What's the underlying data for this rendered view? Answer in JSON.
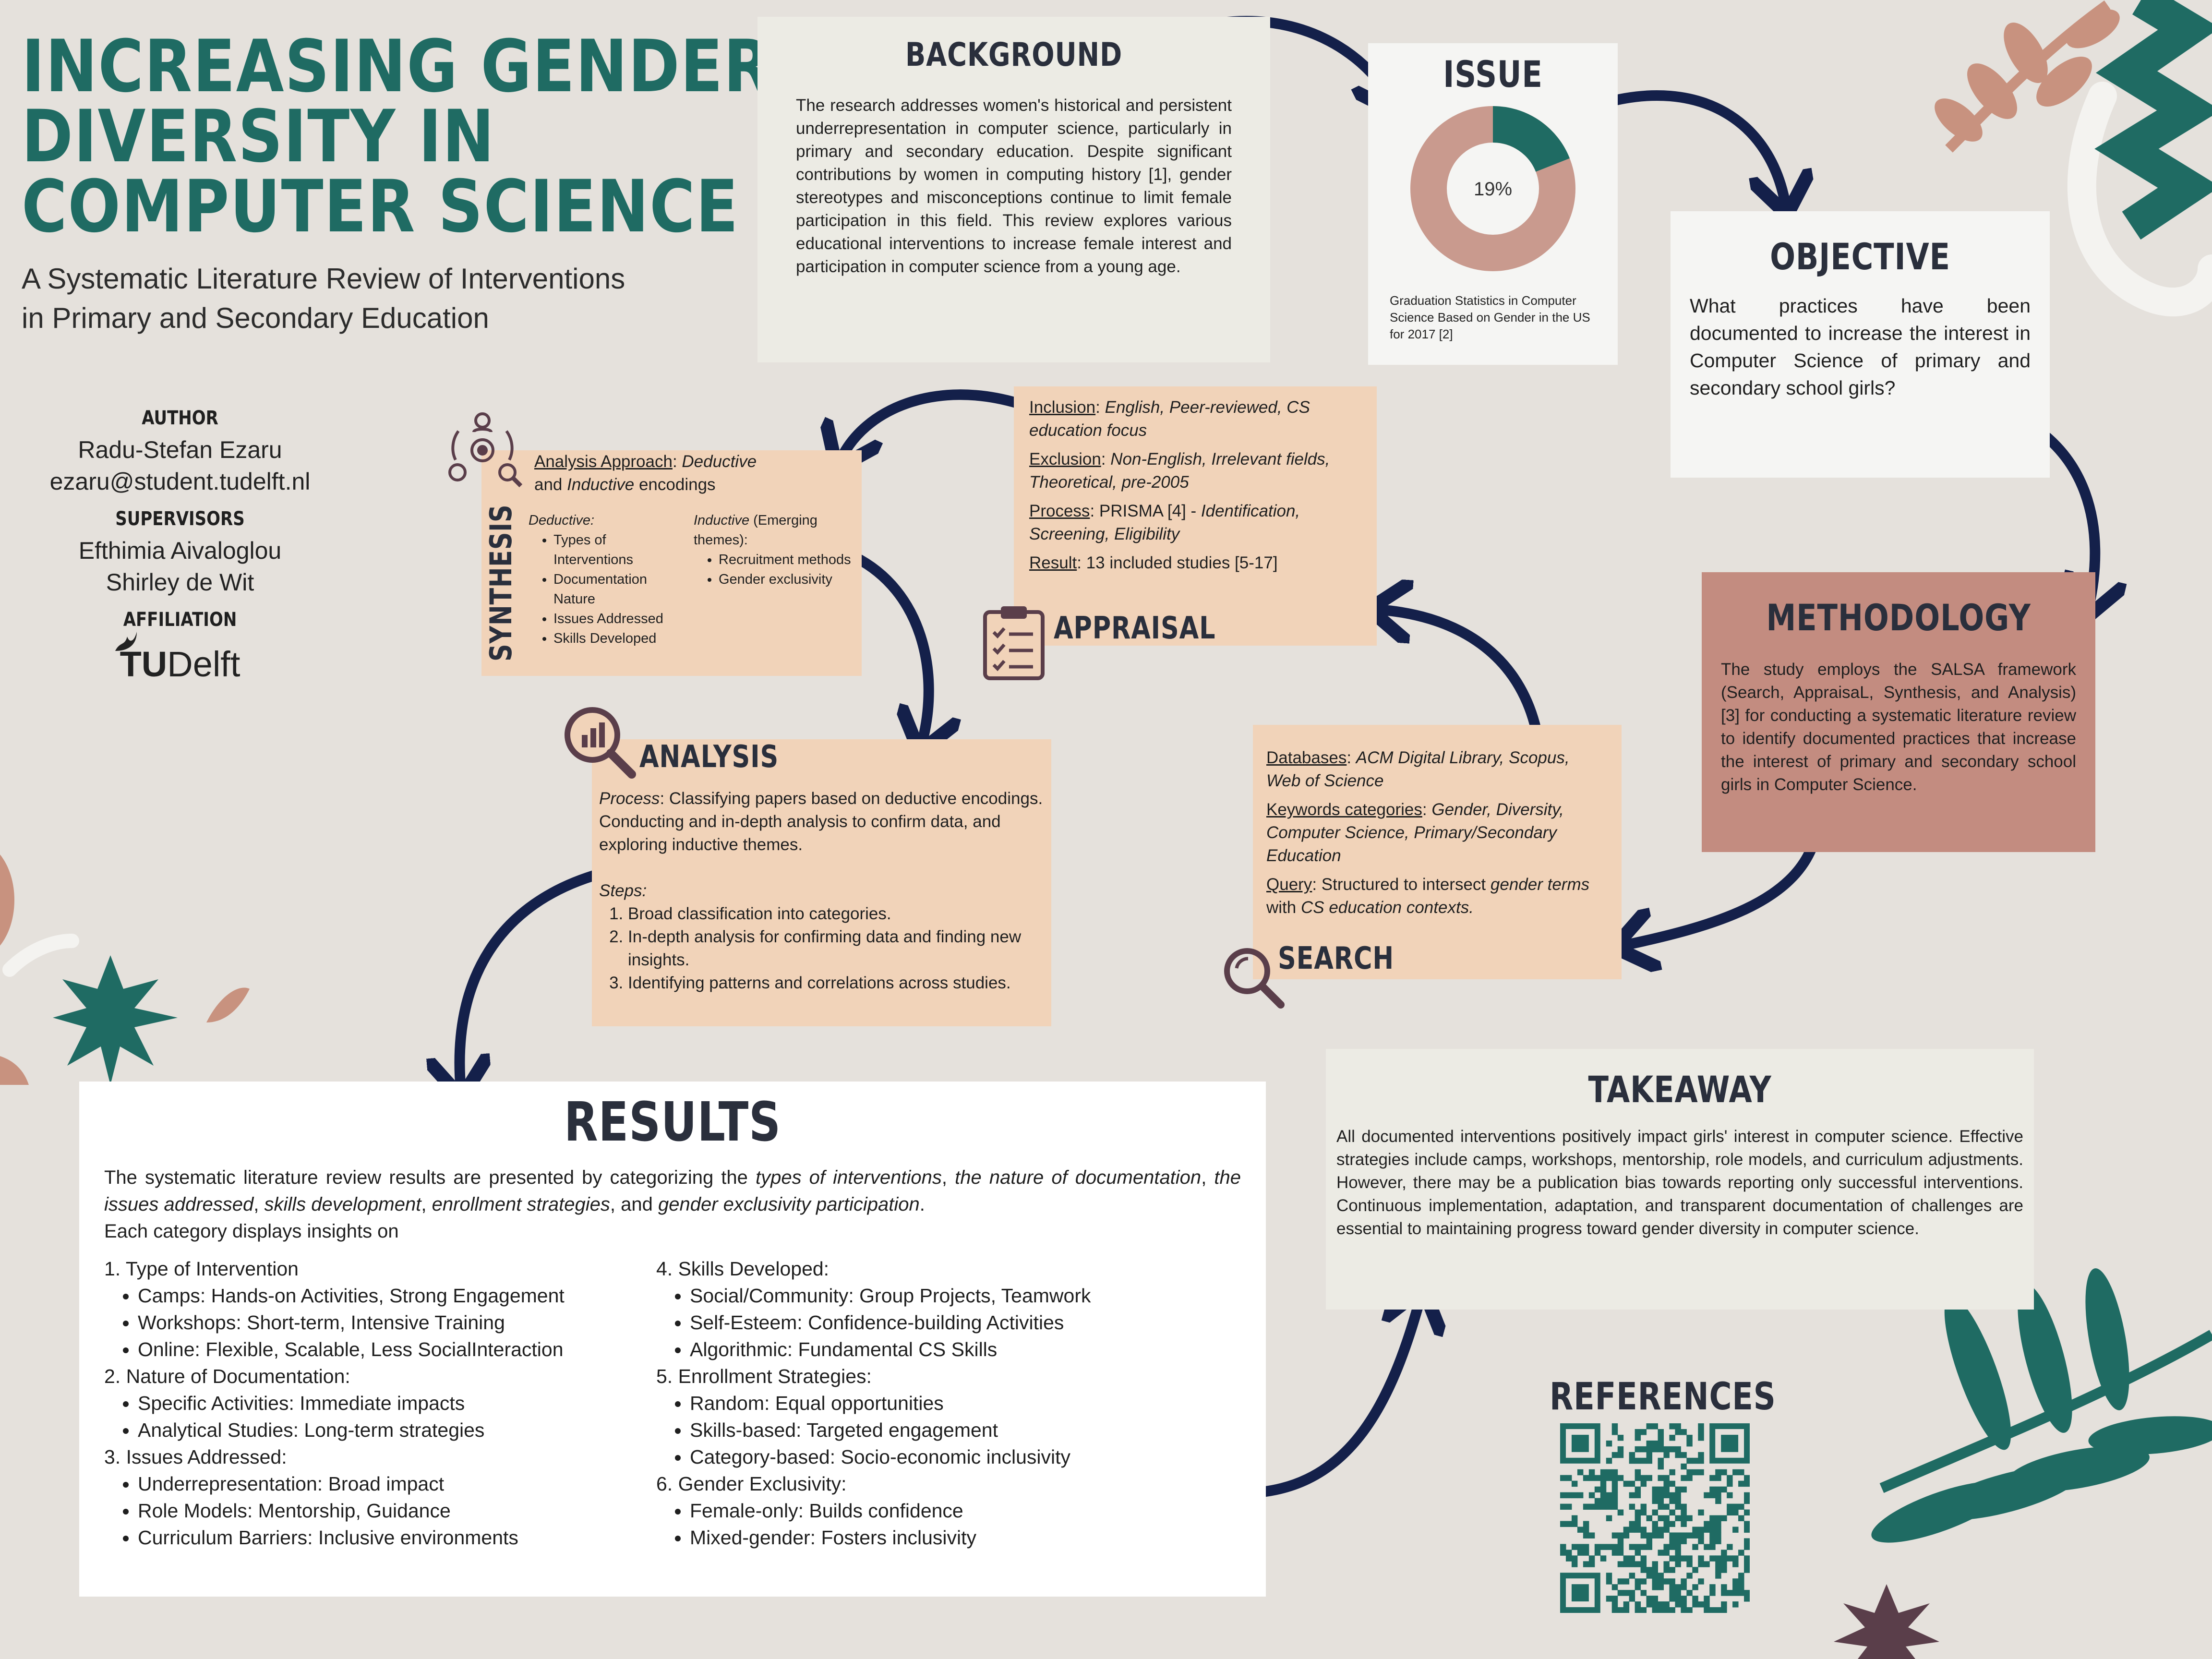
{
  "title": {
    "line1": "INCREASING GENDER",
    "line2": "DIVERSITY IN",
    "line3": "COMPUTER SCIENCE",
    "subtitle_line1": "A Systematic Literature Review of Interventions",
    "subtitle_line2": "in Primary and Secondary Education"
  },
  "author_block": {
    "author_label": "AUTHOR",
    "author_name": "Radu-Stefan Ezaru",
    "author_email": "ezaru@student.tudelft.nl",
    "supervisors_label": "SUPERVISORS",
    "supervisor1": "Efthimia Aivaloglou",
    "supervisor2": "Shirley de Wit",
    "affiliation_label": "AFFILIATION",
    "logo_tu": "TU",
    "logo_delft": "Delft"
  },
  "background": {
    "heading": "BACKGROUND",
    "text": "The research addresses women's historical and persistent underrepresentation in computer science, particularly in primary and secondary education. Despite significant contributions by women in computing history [1], gender stereotypes and misconceptions continue to limit female participation in this field. This review explores various educational interventions to increase female interest and participation in computer science from a young age."
  },
  "issue": {
    "heading": "ISSUE",
    "donut_label": "19%",
    "donut_value_percent": 19,
    "caption": "Graduation Statistics in Computer Science Based on Gender in the US for 2017 [2]",
    "colors": {
      "highlight": "#1f6b63",
      "rest": "#c99a8e"
    }
  },
  "objective": {
    "heading": "OBJECTIVE",
    "text": "What practices have been documented to increase the interest in Computer Science of primary and secondary school girls?"
  },
  "methodology": {
    "heading": "METHODOLOGY",
    "text": "The study employs the SALSA framework (Search, AppraisaL, Synthesis, and Analysis) [3] for conducting a systematic literature review to identify documented practices that increase the interest of primary and secondary school girls in Computer Science."
  },
  "search": {
    "heading": "SEARCH",
    "databases_label": "Databases",
    "databases_value": "ACM Digital Library, Scopus, Web of Science",
    "keywords_label": "Keywords categories",
    "keywords_value": "Gender, Diversity, Computer Science, Primary/Secondary Education",
    "query_label": "Query",
    "query_prefix": "Structured to intersect",
    "query_italic1": "gender terms",
    "query_mid": "with",
    "query_italic2": "CS education contexts."
  },
  "appraisal": {
    "heading": "APPRAISAL",
    "inclusion_label": "Inclusion",
    "inclusion_value": "English, Peer-reviewed, CS education focus",
    "exclusion_label": "Exclusion",
    "exclusion_value": "Non-English, Irrelevant fields, Theoretical, pre-2005",
    "process_label": "Process",
    "process_plain": "PRISMA [4] -",
    "process_italic": "Identification, Screening, Eligibility",
    "result_label": "Result",
    "result_value": "13 included studies [5-17]"
  },
  "synthesis": {
    "heading": "SYNTHESIS",
    "approach_label": "Analysis Approach",
    "approach_italic1": "Deductive",
    "approach_mid": "and",
    "approach_italic2": "Inductive",
    "approach_end": "encodings",
    "deductive_label": "Deductive:",
    "deductive_items": [
      "Types of Interventions",
      "Documentation Nature",
      "Issues Addressed",
      "Skills Developed"
    ],
    "inductive_label": "Inductive",
    "inductive_suffix": "(Emerging themes):",
    "inductive_items": [
      "Recruitment methods",
      "Gender exclusivity"
    ]
  },
  "analysis": {
    "heading": "ANALYSIS",
    "process_label": "Process",
    "process_text": "Classifying papers based on deductive encodings. Conducting and in-depth analysis to confirm data, and exploring inductive themes.",
    "steps_label": "Steps",
    "steps": [
      "Broad classification into categories.",
      "In-depth analysis for confirming data and finding new insights.",
      "Identifying patterns and correlations across studies."
    ]
  },
  "results": {
    "heading": "RESULTS",
    "intro_plain1": "The systematic literature review results are presented by categorizing the",
    "intro_italic1": "types of interventions",
    "intro_comma": ",",
    "intro_italic2": "the nature of documentation",
    "intro_italic3": "the issues addressed",
    "intro_italic4": "skills development",
    "intro_italic5": "enrollment strategies",
    "intro_and": "and",
    "intro_italic6": "gender exclusivity participation",
    "intro_tail": "Each category displays insights on",
    "left_column": [
      {
        "title": "1. Type of Intervention",
        "items": [
          "Camps: Hands-on Activities, Strong Engagement",
          "Workshops: Short-term, Intensive Training",
          "Online: Flexible, Scalable, Less SocialInteraction"
        ]
      },
      {
        "title": "2. Nature of Documentation:",
        "items": [
          "Specific Activities: Immediate impacts",
          "Analytical Studies: Long-term strategies"
        ]
      },
      {
        "title": "3. Issues Addressed:",
        "items": [
          "Underrepresentation: Broad impact",
          "Role Models: Mentorship, Guidance",
          "Curriculum Barriers: Inclusive environments"
        ]
      }
    ],
    "right_column": [
      {
        "title": "4. Skills Developed:",
        "items": [
          "Social/Community: Group Projects, Teamwork",
          "Self-Esteem: Confidence-building Activities",
          "Algorithmic: Fundamental CS Skills"
        ]
      },
      {
        "title": "5. Enrollment Strategies:",
        "items": [
          "Random: Equal opportunities",
          "Skills-based: Targeted engagement",
          "Category-based: Socio-economic inclusivity"
        ]
      },
      {
        "title": "6. Gender Exclusivity:",
        "items": [
          "Female-only: Builds confidence",
          "Mixed-gender: Fosters inclusivity"
        ]
      }
    ]
  },
  "takeaway": {
    "heading": "TAKEAWAY",
    "text": "All documented interventions positively impact girls' interest in computer science. Effective strategies include camps, workshops, mentorship, role models, and curriculum adjustments. However, there may be a publication bias towards reporting only successful interventions. Continuous implementation, adaptation, and transparent documentation of challenges are essential to maintaining progress toward gender diversity in computer science."
  },
  "references": {
    "heading": "REFERENCES"
  },
  "colors": {
    "teal": "#1f6b63",
    "navy_arrow": "#14204a",
    "rose": "#c38c80",
    "peach": "#f1d3b9",
    "dusty_pink": "#c8927f",
    "aubergine": "#5a3e4a"
  }
}
